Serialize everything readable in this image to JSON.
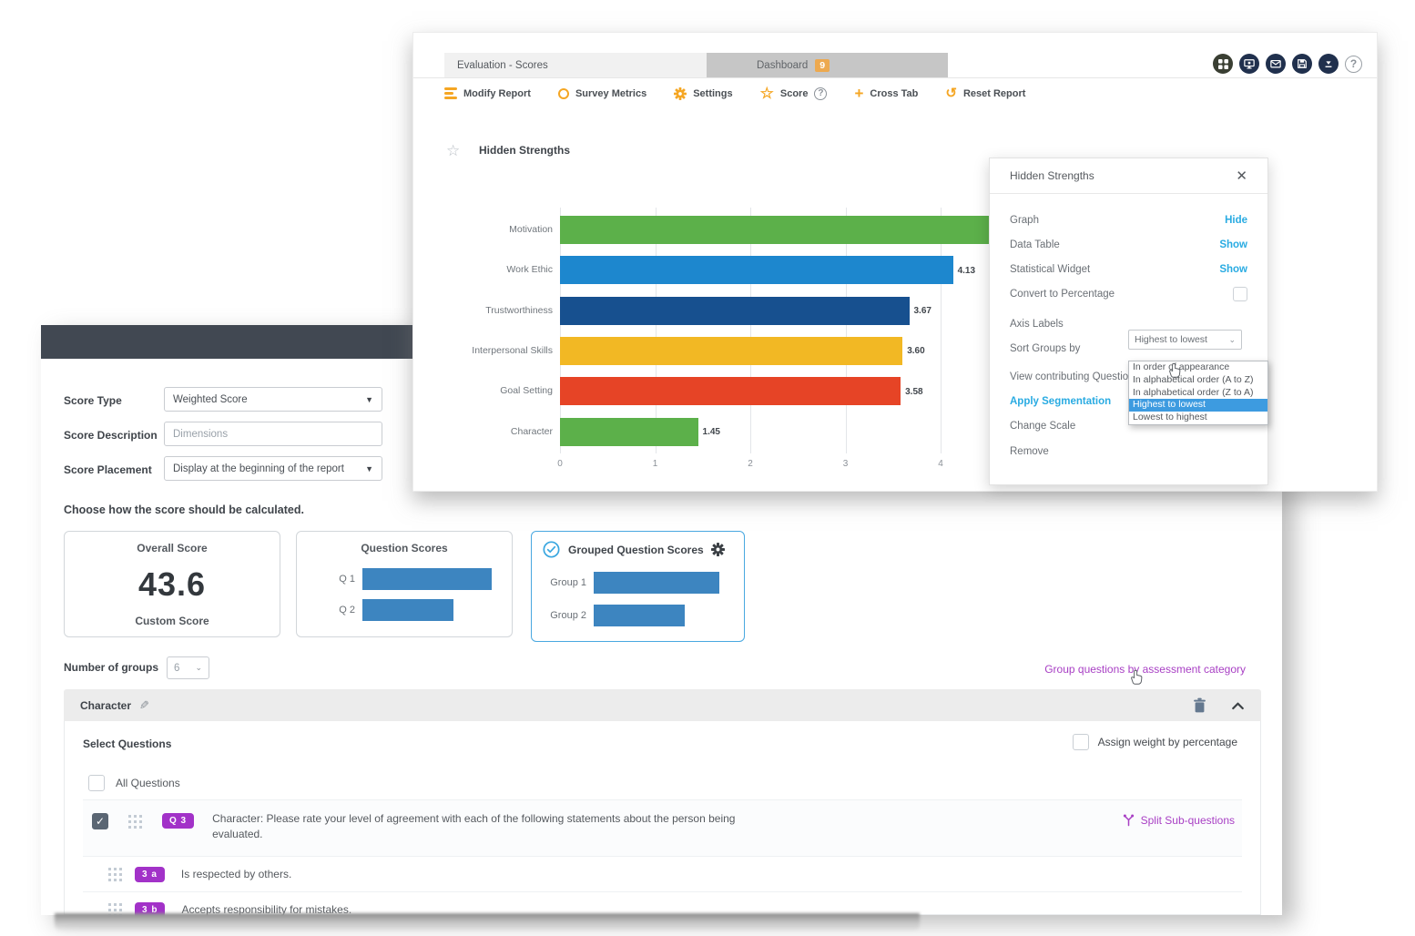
{
  "top_window": {
    "tabs": [
      {
        "label": "Evaluation - Scores"
      },
      {
        "label": "Dashboard",
        "badge": "9"
      }
    ],
    "toolbar": [
      {
        "label": "Modify Report"
      },
      {
        "label": "Survey Metrics"
      },
      {
        "label": "Settings"
      },
      {
        "label": "Score"
      },
      {
        "label": "Cross Tab"
      },
      {
        "label": "Reset Report"
      }
    ],
    "header_icons": [
      "apps-grid",
      "monitor",
      "mail",
      "save",
      "download",
      "help"
    ],
    "help_glyph": "?",
    "widget_title": "Hidden Strengths"
  },
  "chart_data": {
    "type": "bar",
    "orientation": "horizontal",
    "title": "Hidden Strengths",
    "categories": [
      "Motivation",
      "Work Ethic",
      "Trustworthiness",
      "Interpersonal Skills",
      "Goal Setting",
      "Character"
    ],
    "values": [
      4.55,
      4.13,
      3.67,
      3.6,
      3.58,
      1.45
    ],
    "value_labels": [
      "",
      "4.13",
      "3.67",
      "3.60",
      "3.58",
      "1.45"
    ],
    "bar_colors": [
      "#5cb04a",
      "#1d87ce",
      "#17508f",
      "#f2b824",
      "#e64426",
      "#5cb04a"
    ],
    "x_ticks": [
      0,
      1,
      2,
      3,
      4
    ],
    "xlim": [
      0,
      5
    ],
    "grid": true,
    "legend": false,
    "sort_order": "highest to lowest",
    "note_motivation_label_hidden_behind_panel": true
  },
  "panel": {
    "title": "Hidden Strengths",
    "rows": {
      "graph": {
        "label": "Graph",
        "action": "Hide"
      },
      "data_table": {
        "label": "Data Table",
        "action": "Show"
      },
      "statistical_widget": {
        "label": "Statistical Widget",
        "action": "Show"
      },
      "convert_to_percentage": {
        "label": "Convert to Percentage",
        "checked": false
      },
      "axis_labels": {
        "label": "Axis Labels"
      },
      "sort_groups_by": {
        "label": "Sort Groups by",
        "value": "Highest to lowest"
      },
      "view_contributing": {
        "label": "View contributing Questions"
      },
      "apply_segmentation": {
        "label": "Apply Segmentation"
      },
      "change_scale": {
        "label": "Change Scale"
      },
      "remove": {
        "label": "Remove"
      }
    },
    "sort_options": [
      "In order of appearance",
      "In alphabetical order (A to Z)",
      "In alphabetical order (Z to A)",
      "Highest to lowest",
      "Lowest to highest"
    ],
    "sort_selected": "Highest to lowest",
    "close_glyph": "✕"
  },
  "score_window": {
    "fields": {
      "score_type": {
        "label": "Score Type",
        "value": "Weighted Score"
      },
      "score_description": {
        "label": "Score Description",
        "value": "Dimensions"
      },
      "score_placement": {
        "label": "Score Placement",
        "value": "Display at the beginning of the report"
      }
    },
    "calc_heading": "Choose how the score should be calculated.",
    "cards": {
      "overall": {
        "title": "Overall Score",
        "value": "43.6",
        "subtitle": "Custom Score"
      },
      "question": {
        "title": "Question Scores",
        "bars": [
          "Q 1",
          "Q 2"
        ]
      },
      "grouped": {
        "title": "Grouped Question Scores",
        "bars": [
          "Group 1",
          "Group 2"
        ],
        "selected": true
      }
    },
    "number_of_groups": {
      "label": "Number of groups",
      "value": "6"
    },
    "group_link": "Group questions by assessment category",
    "group": {
      "name": "Character",
      "select_questions": "Select Questions",
      "assign_weight": "Assign weight by percentage",
      "all_questions": "All Questions",
      "split_link": "Split Sub-questions",
      "questions": [
        {
          "badge": "Q 3",
          "text": "Character: Please rate your level of agreement with each of the following statements about the person being evaluated.",
          "checked": true
        },
        {
          "badge": "3 a",
          "text": "Is respected by others.",
          "checked": false
        },
        {
          "badge": "3 b",
          "text": "Accepts responsibility for mistakes.",
          "checked": false
        }
      ]
    }
  },
  "colors": {
    "accent_orange": "#f5a623",
    "link_blue": "#29abe2",
    "purple_link": "#a83fc4",
    "badge_purple": "#a232c8",
    "card_bar_blue": "#3d85c0",
    "dark_header": "#414852",
    "selected_option_bg": "#3d9be0"
  }
}
